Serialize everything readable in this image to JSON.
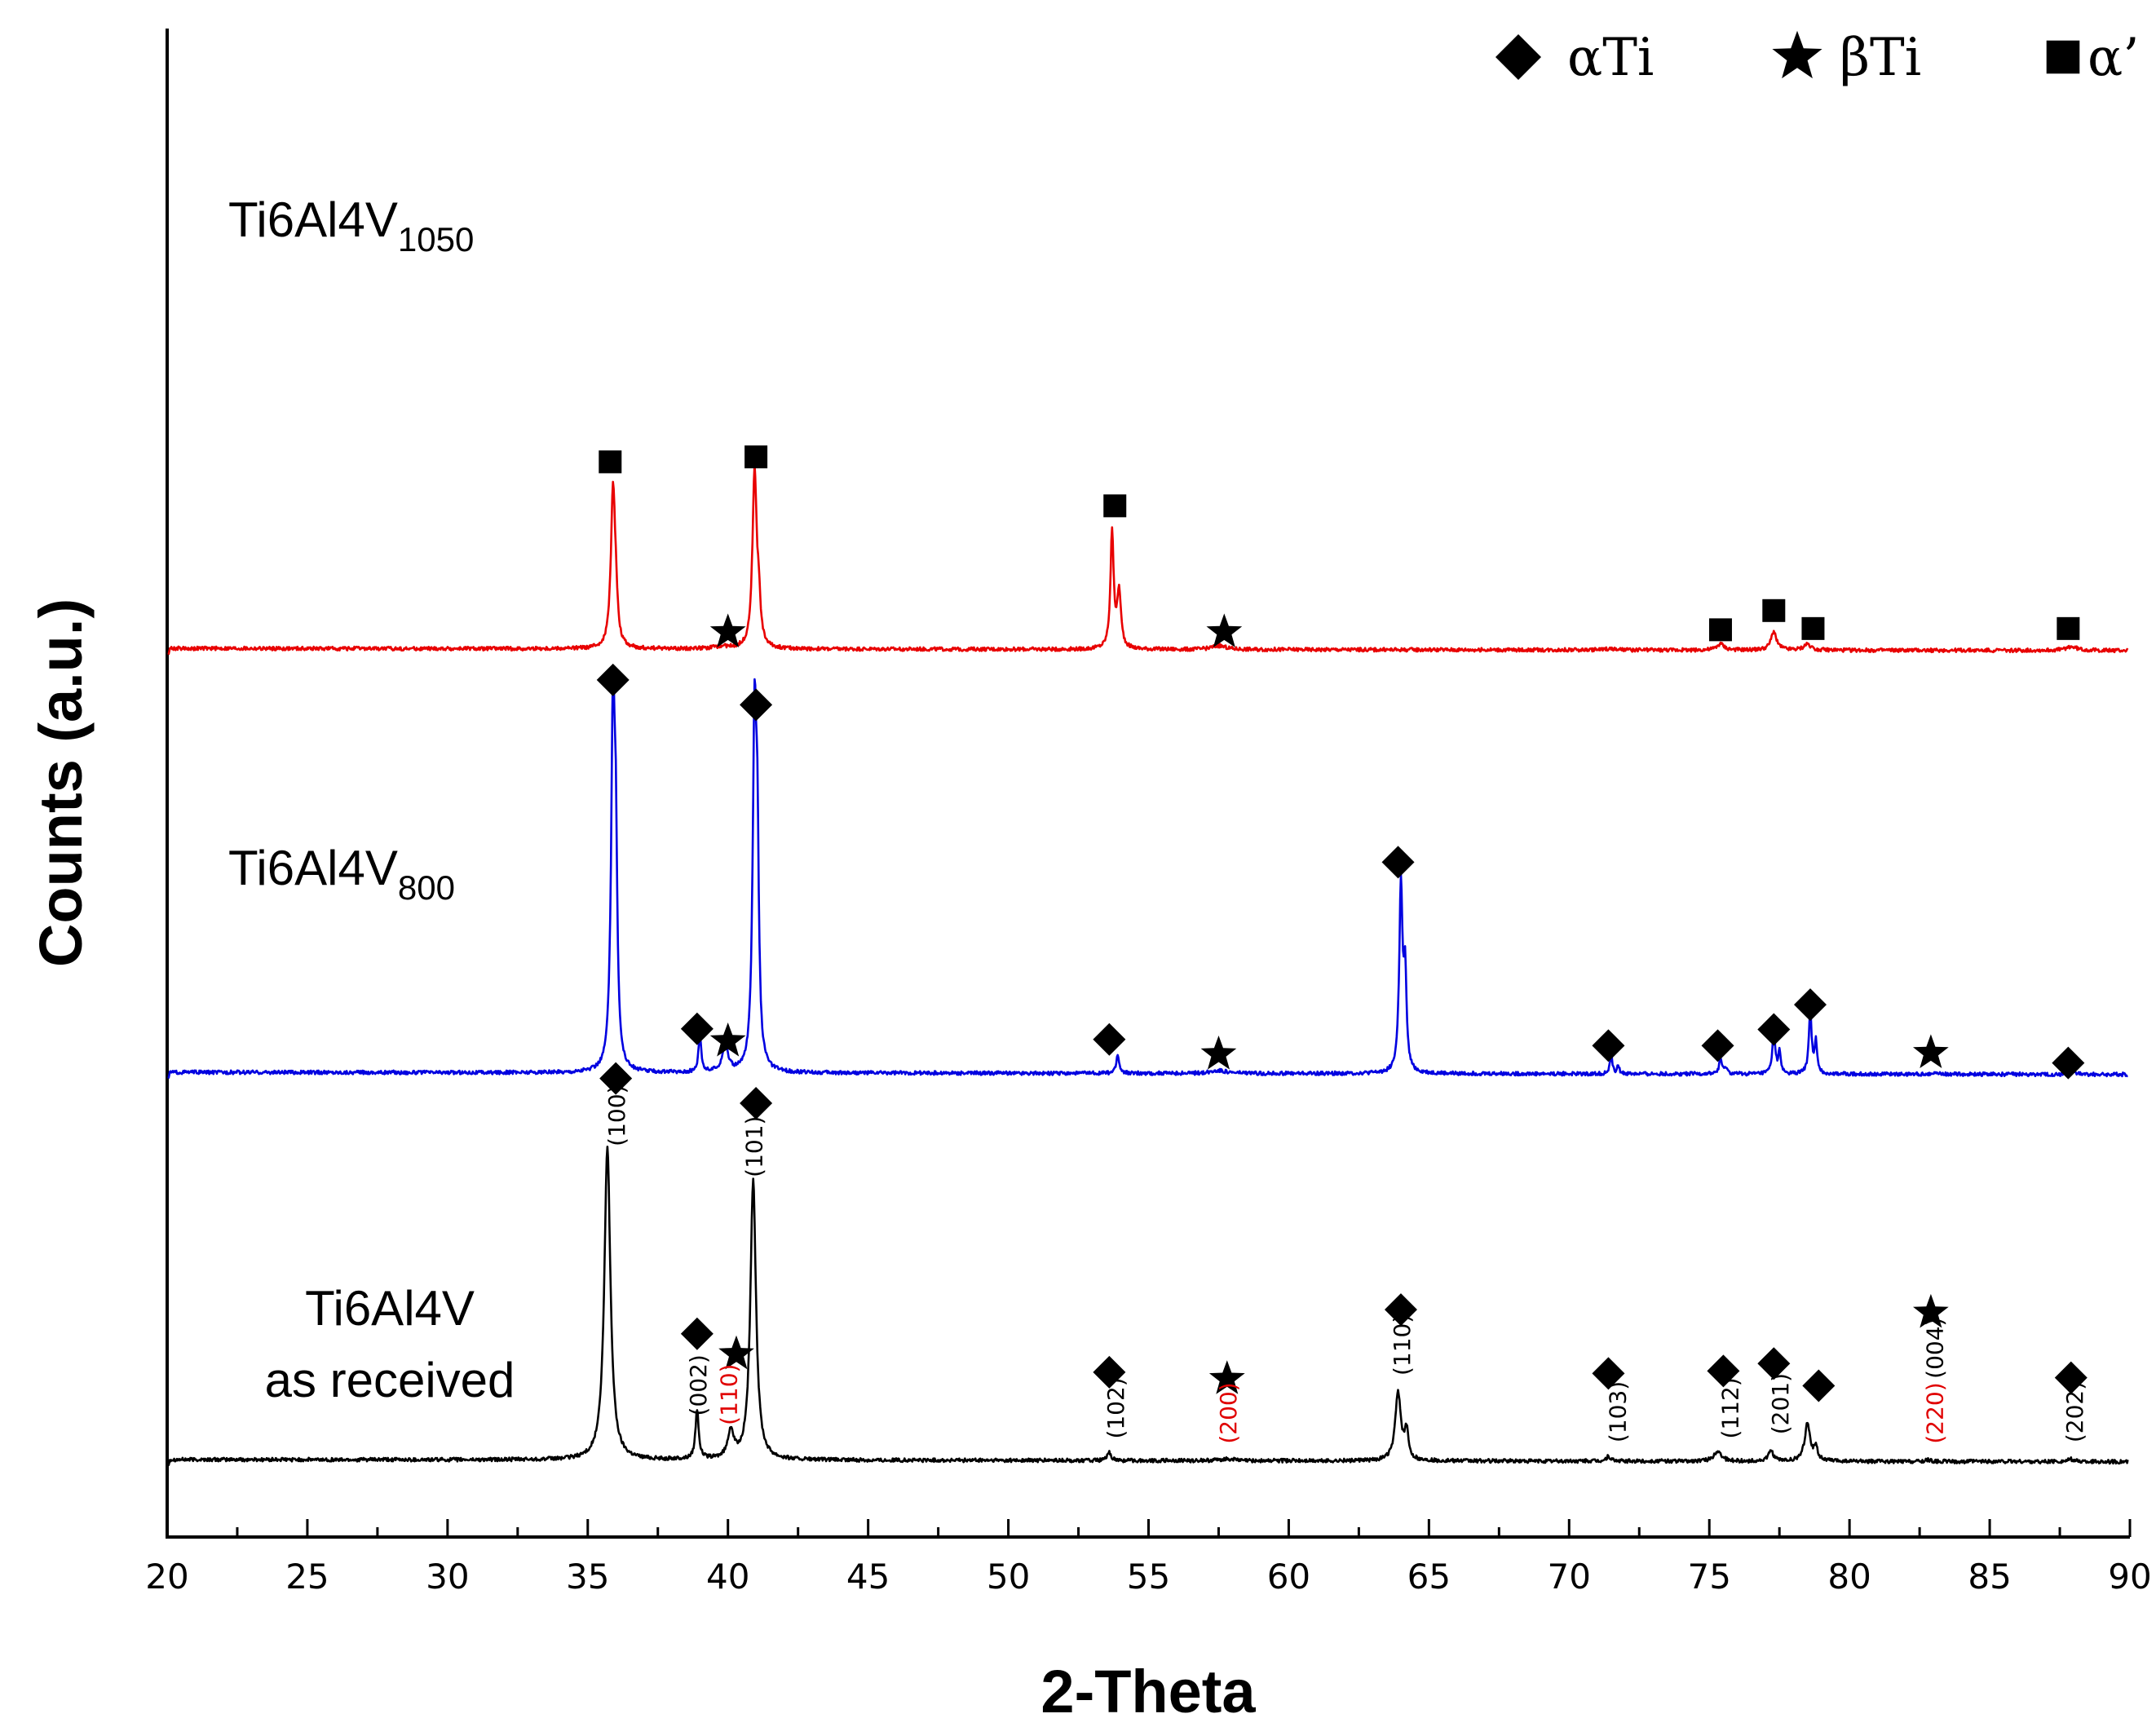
{
  "chart_data": {
    "type": "line",
    "xlabel": "2-Theta",
    "ylabel": "Counts (a.u.)",
    "xlim": [
      20,
      90
    ],
    "xticks": [
      20,
      25,
      30,
      35,
      40,
      45,
      50,
      55,
      60,
      65,
      70,
      75,
      80,
      85,
      90
    ],
    "xtick_labels": [
      "20",
      "25",
      "30",
      "35",
      "40",
      "45",
      "50",
      "55",
      "60",
      "65",
      "70",
      "75",
      "80",
      "85",
      "90"
    ],
    "legend": [
      {
        "marker": "diamond",
        "label": "αTi"
      },
      {
        "marker": "star",
        "label": "βTi"
      },
      {
        "marker": "square",
        "label": "α’"
      }
    ],
    "series": [
      {
        "name": "Ti6Al4V as received",
        "label_lines": [
          "Ti6Al4V",
          "as received"
        ],
        "color": "#000000",
        "baseline": 0.0,
        "peaks": [
          {
            "x": 35.7,
            "h": 0.505,
            "w": 0.13
          },
          {
            "x": 38.9,
            "h": 0.08,
            "w": 0.07
          },
          {
            "x": 40.1,
            "h": 0.045,
            "w": 0.12
          },
          {
            "x": 40.9,
            "h": 0.45,
            "w": 0.12
          },
          {
            "x": 53.6,
            "h": 0.013,
            "w": 0.08
          },
          {
            "x": 57.8,
            "h": 0.003,
            "w": 0.3
          },
          {
            "x": 63.9,
            "h": 0.11,
            "w": 0.12
          },
          {
            "x": 64.2,
            "h": 0.045,
            "w": 0.08
          },
          {
            "x": 71.4,
            "h": 0.008,
            "w": 0.08
          },
          {
            "x": 75.3,
            "h": 0.017,
            "w": 0.15
          },
          {
            "x": 77.2,
            "h": 0.017,
            "w": 0.1
          },
          {
            "x": 78.5,
            "h": 0.06,
            "w": 0.12
          },
          {
            "x": 78.8,
            "h": 0.02,
            "w": 0.08
          },
          {
            "x": 82.8,
            "h": 0.003,
            "w": 0.1
          },
          {
            "x": 87.9,
            "h": 0.004,
            "w": 0.12
          }
        ],
        "markers": [
          {
            "type": "diamond",
            "x": 36.0,
            "y": 0.615
          },
          {
            "type": "diamond",
            "x": 41.0,
            "y": 0.575
          },
          {
            "type": "diamond",
            "x": 38.9,
            "y": 0.203
          },
          {
            "type": "star",
            "x": 40.3,
            "y": 0.17
          },
          {
            "type": "diamond",
            "x": 53.6,
            "y": 0.141
          },
          {
            "type": "star",
            "x": 57.8,
            "y": 0.13
          },
          {
            "type": "diamond",
            "x": 64.0,
            "y": 0.242
          },
          {
            "type": "diamond",
            "x": 71.4,
            "y": 0.139
          },
          {
            "type": "diamond",
            "x": 75.5,
            "y": 0.143
          },
          {
            "type": "diamond",
            "x": 77.3,
            "y": 0.155
          },
          {
            "type": "diamond",
            "x": 78.9,
            "y": 0.119
          },
          {
            "type": "star",
            "x": 82.9,
            "y": 0.237
          },
          {
            "type": "diamond",
            "x": 87.9,
            "y": 0.132
          }
        ],
        "hkl": [
          {
            "text": "(100)",
            "x": 36.0,
            "y": 0.555,
            "color": "#000000"
          },
          {
            "text": "(101)",
            "x": 40.9,
            "y": 0.505,
            "color": "#000000"
          },
          {
            "text": "(002)",
            "x": 38.9,
            "y": 0.12,
            "color": "#000000"
          },
          {
            "text": "(110)",
            "x": 40.0,
            "y": 0.105,
            "color": "#e00000"
          },
          {
            "text": "(102)",
            "x": 53.8,
            "y": 0.083,
            "color": "#000000"
          },
          {
            "text": "(200)",
            "x": 57.8,
            "y": 0.075,
            "color": "#e00000"
          },
          {
            "text": "(110)",
            "x": 64.0,
            "y": 0.185,
            "color": "#000000"
          },
          {
            "text": "(103)",
            "x": 71.7,
            "y": 0.077,
            "color": "#000000"
          },
          {
            "text": "(112)",
            "x": 75.7,
            "y": 0.083,
            "color": "#000000"
          },
          {
            "text": "(201)",
            "x": 77.5,
            "y": 0.09,
            "color": "#000000"
          },
          {
            "text": "(004)",
            "x": 83.0,
            "y": 0.18,
            "color": "#000000"
          },
          {
            "text": "(220)",
            "x": 83.0,
            "y": 0.075,
            "color": "#e00000"
          },
          {
            "text": "(202)",
            "x": 88.0,
            "y": 0.077,
            "color": "#000000"
          }
        ]
      },
      {
        "name": "Ti6Al4V800",
        "label_main": "Ti6Al4V",
        "label_sub": "800",
        "color": "#0000e0",
        "baseline": 0.625,
        "peaks": [
          {
            "x": 35.9,
            "h": 0.58,
            "w": 0.08
          },
          {
            "x": 36.0,
            "h": 0.28,
            "w": 0.06
          },
          {
            "x": 39.0,
            "h": 0.06,
            "w": 0.06
          },
          {
            "x": 39.9,
            "h": 0.045,
            "w": 0.12
          },
          {
            "x": 40.95,
            "h": 0.56,
            "w": 0.08
          },
          {
            "x": 41.05,
            "h": 0.29,
            "w": 0.06
          },
          {
            "x": 53.9,
            "h": 0.03,
            "w": 0.06
          },
          {
            "x": 57.5,
            "h": 0.005,
            "w": 0.3
          },
          {
            "x": 64.0,
            "h": 0.3,
            "w": 0.07
          },
          {
            "x": 64.15,
            "h": 0.15,
            "w": 0.06
          },
          {
            "x": 71.5,
            "h": 0.03,
            "w": 0.05
          },
          {
            "x": 71.75,
            "h": 0.012,
            "w": 0.05
          },
          {
            "x": 75.4,
            "h": 0.025,
            "w": 0.06
          },
          {
            "x": 75.6,
            "h": 0.01,
            "w": 0.05
          },
          {
            "x": 77.3,
            "h": 0.07,
            "w": 0.06
          },
          {
            "x": 77.5,
            "h": 0.035,
            "w": 0.05
          },
          {
            "x": 78.6,
            "h": 0.1,
            "w": 0.06
          },
          {
            "x": 78.8,
            "h": 0.05,
            "w": 0.05
          },
          {
            "x": 83.0,
            "h": 0.003,
            "w": 0.1
          },
          {
            "x": 88.0,
            "h": 0.006,
            "w": 0.08
          }
        ],
        "markers": [
          {
            "type": "diamond",
            "x": 35.9,
            "y": 1.258
          },
          {
            "type": "diamond",
            "x": 41.0,
            "y": 1.218
          },
          {
            "type": "diamond",
            "x": 38.9,
            "y": 0.695
          },
          {
            "type": "star",
            "x": 40.0,
            "y": 0.675
          },
          {
            "type": "diamond",
            "x": 53.6,
            "y": 0.678
          },
          {
            "type": "star",
            "x": 57.5,
            "y": 0.654
          },
          {
            "type": "diamond",
            "x": 63.9,
            "y": 0.964
          },
          {
            "type": "diamond",
            "x": 71.4,
            "y": 0.668
          },
          {
            "type": "diamond",
            "x": 75.3,
            "y": 0.668
          },
          {
            "type": "diamond",
            "x": 77.3,
            "y": 0.694
          },
          {
            "type": "diamond",
            "x": 78.6,
            "y": 0.734
          },
          {
            "type": "star",
            "x": 82.9,
            "y": 0.656
          },
          {
            "type": "diamond",
            "x": 87.8,
            "y": 0.64
          }
        ]
      },
      {
        "name": "Ti6Al4V1050",
        "label_main": "Ti6Al4V",
        "label_sub": "1050",
        "color": "#e80000",
        "baseline": 1.309,
        "peaks": [
          {
            "x": 35.9,
            "h": 0.255,
            "w": 0.09
          },
          {
            "x": 36.0,
            "h": 0.05,
            "w": 0.07
          },
          {
            "x": 39.8,
            "h": 0.003,
            "w": 0.4
          },
          {
            "x": 40.95,
            "h": 0.285,
            "w": 0.09
          },
          {
            "x": 41.1,
            "h": 0.06,
            "w": 0.07
          },
          {
            "x": 53.7,
            "h": 0.187,
            "w": 0.07
          },
          {
            "x": 53.95,
            "h": 0.09,
            "w": 0.08
          },
          {
            "x": 57.5,
            "h": 0.006,
            "w": 0.3
          },
          {
            "x": 71.4,
            "h": 0.002,
            "w": 0.2
          },
          {
            "x": 75.4,
            "h": 0.01,
            "w": 0.15
          },
          {
            "x": 77.3,
            "h": 0.03,
            "w": 0.12
          },
          {
            "x": 78.5,
            "h": 0.01,
            "w": 0.15
          },
          {
            "x": 87.9,
            "h": 0.006,
            "w": 0.25
          }
        ],
        "markers": [
          {
            "type": "square",
            "x": 35.8,
            "y": 1.61
          },
          {
            "type": "square",
            "x": 41.0,
            "y": 1.618
          },
          {
            "type": "star",
            "x": 40.0,
            "y": 1.335
          },
          {
            "type": "square",
            "x": 53.8,
            "y": 1.539
          },
          {
            "type": "star",
            "x": 57.7,
            "y": 1.335
          },
          {
            "type": "square",
            "x": 75.4,
            "y": 1.339
          },
          {
            "type": "square",
            "x": 77.3,
            "y": 1.37
          },
          {
            "type": "square",
            "x": 78.7,
            "y": 1.341
          },
          {
            "type": "square",
            "x": 87.8,
            "y": 1.341
          }
        ]
      }
    ]
  }
}
